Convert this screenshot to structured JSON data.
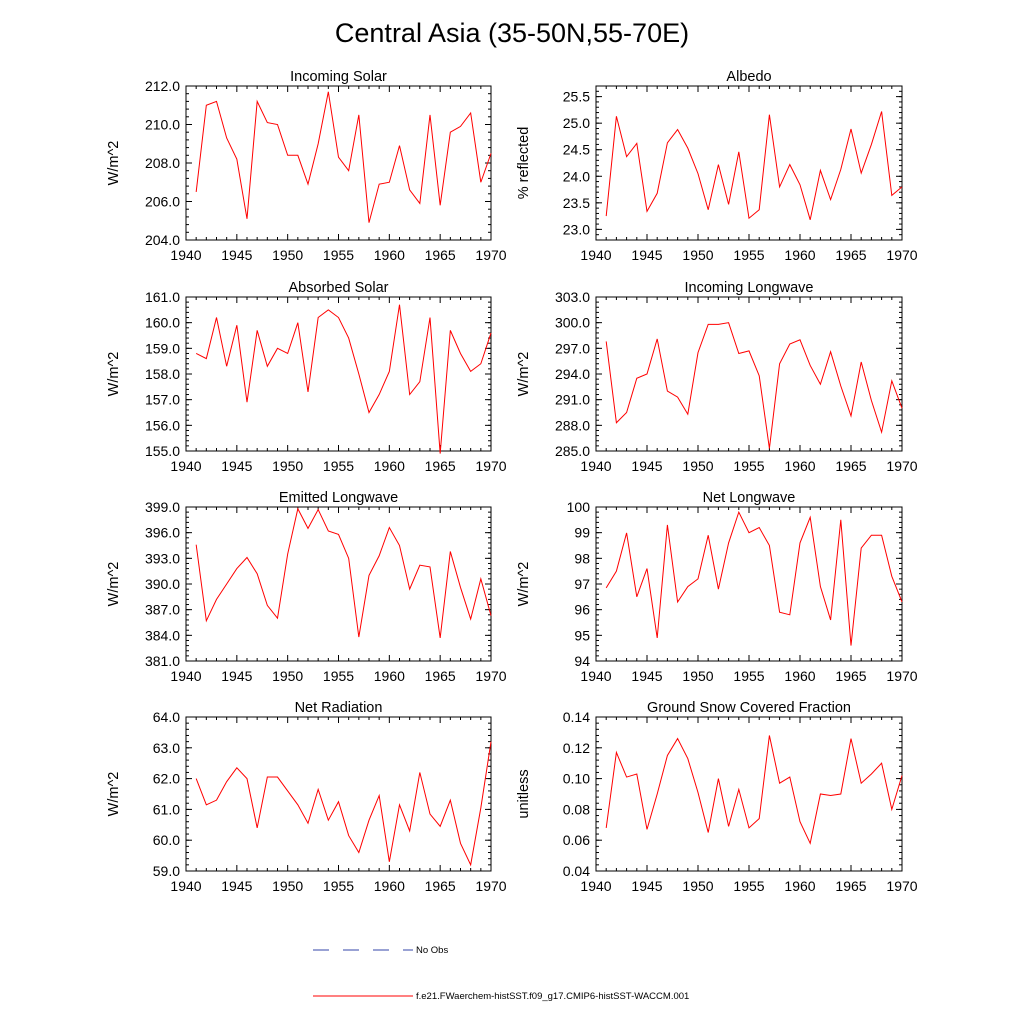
{
  "title": "Central Asia (35-50N,55-70E)",
  "legend": {
    "obs_label": "No Obs",
    "model_label": "f.e21.FWaerchem-histSST.f09_g17.CMIP6-histSST-WACCM.001",
    "obs_color": "#3344aa",
    "model_color": "#ff0000"
  },
  "chart_data": [
    {
      "type": "line",
      "title": "Incoming Solar",
      "ylabel": "W/m^2",
      "xlim": [
        1940,
        1970
      ],
      "ylim": [
        204,
        212
      ],
      "yticks": [
        204,
        206,
        208,
        210,
        212
      ],
      "yfmt": 1,
      "xticks": [
        1940,
        1945,
        1950,
        1955,
        1960,
        1965,
        1970
      ],
      "series": [
        {
          "x_start": 1941,
          "values": [
            206.5,
            211.0,
            211.2,
            209.3,
            208.2,
            205.1,
            211.2,
            210.1,
            210.0,
            208.4,
            208.4,
            206.9,
            209.0,
            211.7,
            208.3,
            207.6,
            210.5,
            204.9,
            206.9,
            207.0,
            208.9,
            206.6,
            205.9,
            210.5,
            205.8,
            209.6,
            209.9,
            210.6,
            207.0,
            208.5
          ]
        }
      ]
    },
    {
      "type": "line",
      "title": "Albedo",
      "ylabel": "% reflected",
      "xlim": [
        1940,
        1970
      ],
      "ylim": [
        22.8,
        25.7
      ],
      "yticks": [
        23.0,
        23.5,
        24.0,
        24.5,
        25.0,
        25.5
      ],
      "yfmt": 1,
      "xticks": [
        1940,
        1945,
        1950,
        1955,
        1960,
        1965,
        1970
      ],
      "series": [
        {
          "x_start": 1941,
          "values": [
            23.25,
            25.13,
            24.37,
            24.62,
            23.34,
            23.68,
            24.63,
            24.88,
            24.53,
            24.05,
            23.37,
            24.22,
            23.47,
            24.46,
            23.21,
            23.37,
            25.16,
            23.8,
            24.22,
            23.84,
            23.18,
            24.11,
            23.56,
            24.13,
            24.89,
            24.06,
            24.6,
            25.22,
            23.64,
            23.8
          ]
        }
      ]
    },
    {
      "type": "line",
      "title": "Absorbed Solar",
      "ylabel": "W/m^2",
      "xlim": [
        1940,
        1970
      ],
      "ylim": [
        155,
        161
      ],
      "yticks": [
        155,
        156,
        157,
        158,
        159,
        160,
        161
      ],
      "yfmt": 1,
      "xticks": [
        1940,
        1945,
        1950,
        1955,
        1960,
        1965,
        1970
      ],
      "series": [
        {
          "x_start": 1941,
          "values": [
            158.8,
            158.6,
            160.2,
            158.3,
            159.9,
            156.9,
            159.7,
            158.3,
            159.0,
            158.8,
            160.0,
            157.3,
            160.2,
            160.5,
            160.2,
            159.4,
            158.0,
            156.5,
            157.2,
            158.1,
            160.7,
            157.2,
            157.7,
            160.2,
            154.9,
            159.7,
            158.8,
            158.1,
            158.4,
            159.6
          ]
        }
      ]
    },
    {
      "type": "line",
      "title": "Incoming Longwave",
      "ylabel": "W/m^2",
      "xlim": [
        1940,
        1970
      ],
      "ylim": [
        285,
        303
      ],
      "yticks": [
        285,
        288,
        291,
        294,
        297,
        300,
        303
      ],
      "yfmt": 1,
      "xticks": [
        1940,
        1945,
        1950,
        1955,
        1960,
        1965,
        1970
      ],
      "series": [
        {
          "x_start": 1941,
          "values": [
            297.8,
            288.3,
            289.5,
            293.5,
            294.0,
            298.1,
            292.0,
            291.3,
            289.3,
            296.5,
            299.8,
            299.8,
            300.0,
            296.4,
            296.7,
            293.8,
            285.3,
            295.2,
            297.5,
            298.0,
            295.0,
            292.8,
            296.6,
            292.6,
            289.1,
            295.4,
            290.9,
            287.2,
            293.2,
            290.0
          ]
        }
      ]
    },
    {
      "type": "line",
      "title": "Emitted Longwave",
      "ylabel": "W/m^2",
      "xlim": [
        1940,
        1970
      ],
      "ylim": [
        381,
        399
      ],
      "yticks": [
        381,
        384,
        387,
        390,
        393,
        396,
        399
      ],
      "yfmt": 1,
      "xticks": [
        1940,
        1945,
        1950,
        1955,
        1960,
        1965,
        1970
      ],
      "series": [
        {
          "x_start": 1941,
          "values": [
            394.6,
            385.7,
            388.2,
            390.0,
            391.8,
            393.1,
            391.2,
            387.5,
            386.0,
            393.5,
            398.8,
            396.5,
            398.7,
            396.2,
            395.8,
            393.0,
            383.8,
            391.0,
            393.3,
            396.6,
            394.5,
            389.4,
            392.2,
            392.0,
            383.7,
            393.8,
            389.6,
            385.9,
            390.6,
            386.3
          ]
        }
      ]
    },
    {
      "type": "line",
      "title": "Net Longwave",
      "ylabel": "W/m^2",
      "xlim": [
        1940,
        1970
      ],
      "ylim": [
        94,
        100
      ],
      "yticks": [
        94,
        95,
        96,
        97,
        98,
        99,
        100
      ],
      "yfmt": 0,
      "xticks": [
        1940,
        1945,
        1950,
        1955,
        1960,
        1965,
        1970
      ],
      "series": [
        {
          "x_start": 1941,
          "values": [
            96.85,
            97.5,
            98.99,
            96.5,
            97.6,
            94.9,
            99.3,
            96.3,
            96.9,
            97.2,
            98.9,
            96.8,
            98.6,
            99.8,
            99.0,
            99.2,
            98.5,
            95.9,
            95.8,
            98.6,
            99.6,
            96.9,
            95.6,
            99.5,
            94.6,
            98.4,
            98.9,
            98.9,
            97.3,
            96.3
          ]
        }
      ]
    },
    {
      "type": "line",
      "title": "Net Radiation",
      "ylabel": "W/m^2",
      "xlim": [
        1940,
        1970
      ],
      "ylim": [
        59,
        64
      ],
      "yticks": [
        59,
        60,
        61,
        62,
        63,
        64
      ],
      "yfmt": 1,
      "xticks": [
        1940,
        1945,
        1950,
        1955,
        1960,
        1965,
        1970
      ],
      "series": [
        {
          "x_start": 1941,
          "values": [
            62.0,
            61.15,
            61.3,
            61.9,
            62.35,
            62.0,
            60.4,
            62.05,
            62.05,
            61.6,
            61.15,
            60.55,
            61.65,
            60.65,
            61.25,
            60.15,
            59.6,
            60.65,
            61.45,
            59.3,
            61.15,
            60.3,
            62.2,
            60.85,
            60.45,
            61.3,
            59.9,
            59.2,
            61.05,
            63.2
          ]
        }
      ]
    },
    {
      "type": "line",
      "title": "Ground Snow Covered Fraction",
      "ylabel": "unitless",
      "xlim": [
        1940,
        1970
      ],
      "ylim": [
        0.04,
        0.14
      ],
      "yticks": [
        0.04,
        0.06,
        0.08,
        0.1,
        0.12,
        0.14
      ],
      "yfmt": 2,
      "xticks": [
        1940,
        1945,
        1950,
        1955,
        1960,
        1965,
        1970
      ],
      "series": [
        {
          "x_start": 1941,
          "values": [
            0.068,
            0.117,
            0.101,
            0.103,
            0.067,
            0.09,
            0.115,
            0.126,
            0.113,
            0.091,
            0.065,
            0.1,
            0.069,
            0.093,
            0.068,
            0.074,
            0.128,
            0.097,
            0.101,
            0.072,
            0.058,
            0.09,
            0.089,
            0.09,
            0.126,
            0.097,
            0.103,
            0.11,
            0.08,
            0.102
          ]
        }
      ]
    }
  ]
}
